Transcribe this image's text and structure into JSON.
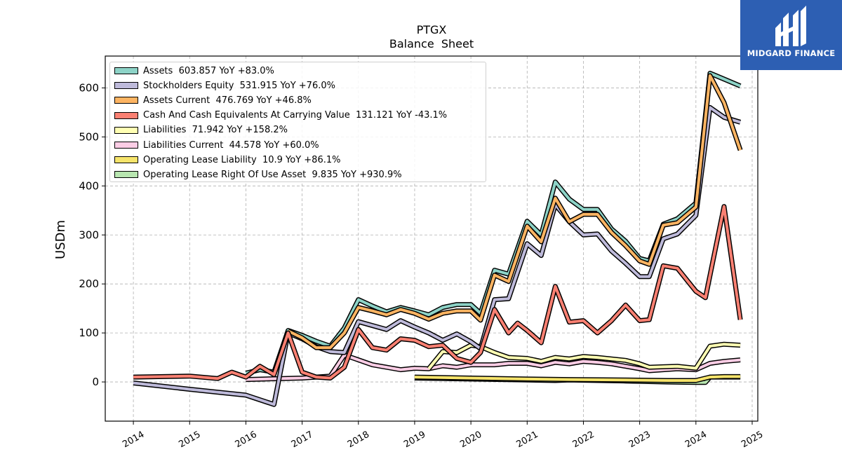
{
  "chart_data": {
    "type": "line",
    "title": "PTGX",
    "subtitle": "Balance  Sheet",
    "ylabel": "USDm",
    "xlabel": "",
    "xlim": [
      2013.5,
      2025.1
    ],
    "ylim": [
      -80,
      665
    ],
    "x_ticks": [
      2014,
      2015,
      2016,
      2017,
      2018,
      2019,
      2020,
      2021,
      2022,
      2023,
      2024,
      2025
    ],
    "y_ticks": [
      0,
      100,
      200,
      300,
      400,
      500,
      600
    ],
    "grid": true,
    "legend_position": "top-left",
    "series": [
      {
        "name": "Assets  603.857 YoY +83.0%",
        "color": "#8dd3c7",
        "points": [
          [
            2016.0,
            18
          ],
          [
            2016.25,
            25
          ],
          [
            2016.5,
            20
          ],
          [
            2016.75,
            105
          ],
          [
            2017.0,
            95
          ],
          [
            2017.25,
            83
          ],
          [
            2017.5,
            73
          ],
          [
            2017.75,
            110
          ],
          [
            2018.0,
            168
          ],
          [
            2018.25,
            155
          ],
          [
            2018.5,
            143
          ],
          [
            2018.75,
            152
          ],
          [
            2019.0,
            145
          ],
          [
            2019.25,
            137
          ],
          [
            2019.5,
            152
          ],
          [
            2019.75,
            158
          ],
          [
            2020.0,
            158
          ],
          [
            2020.17,
            140
          ],
          [
            2020.42,
            228
          ],
          [
            2020.67,
            220
          ],
          [
            2021.0,
            328
          ],
          [
            2021.25,
            300
          ],
          [
            2021.5,
            408
          ],
          [
            2021.75,
            373
          ],
          [
            2022.0,
            352
          ],
          [
            2022.25,
            352
          ],
          [
            2022.5,
            312
          ],
          [
            2022.75,
            287
          ],
          [
            2023.0,
            252
          ],
          [
            2023.17,
            247
          ],
          [
            2023.42,
            322
          ],
          [
            2023.67,
            333
          ],
          [
            2024.0,
            365
          ],
          [
            2024.25,
            630
          ],
          [
            2024.5,
            618
          ],
          [
            2024.79,
            604
          ]
        ]
      },
      {
        "name": "Stockholders Equity  531.915 YoY +76.0%",
        "color": "#bebada",
        "points": [
          [
            2014.0,
            -2
          ],
          [
            2015.0,
            -15
          ],
          [
            2016.0,
            -27
          ],
          [
            2016.5,
            -46
          ],
          [
            2016.75,
            100
          ],
          [
            2017.0,
            88
          ],
          [
            2017.25,
            72
          ],
          [
            2017.5,
            62
          ],
          [
            2017.75,
            60
          ],
          [
            2018.0,
            123
          ],
          [
            2018.25,
            115
          ],
          [
            2018.5,
            107
          ],
          [
            2018.75,
            125
          ],
          [
            2019.0,
            112
          ],
          [
            2019.25,
            100
          ],
          [
            2019.5,
            85
          ],
          [
            2019.75,
            98
          ],
          [
            2020.0,
            82
          ],
          [
            2020.17,
            68
          ],
          [
            2020.42,
            168
          ],
          [
            2020.67,
            170
          ],
          [
            2021.0,
            282
          ],
          [
            2021.25,
            258
          ],
          [
            2021.5,
            362
          ],
          [
            2021.75,
            327
          ],
          [
            2022.0,
            300
          ],
          [
            2022.25,
            302
          ],
          [
            2022.5,
            267
          ],
          [
            2022.75,
            242
          ],
          [
            2023.0,
            215
          ],
          [
            2023.17,
            215
          ],
          [
            2023.42,
            292
          ],
          [
            2023.67,
            302
          ],
          [
            2024.0,
            340
          ],
          [
            2024.25,
            560
          ],
          [
            2024.5,
            540
          ],
          [
            2024.79,
            530
          ]
        ]
      },
      {
        "name": "Assets Current  476.769 YoY +46.8%",
        "color": "#fdb462",
        "points": [
          [
            2016.75,
            104
          ],
          [
            2017.0,
            90
          ],
          [
            2017.25,
            70
          ],
          [
            2017.5,
            70
          ],
          [
            2017.75,
            100
          ],
          [
            2018.0,
            152
          ],
          [
            2018.25,
            145
          ],
          [
            2018.5,
            137
          ],
          [
            2018.75,
            148
          ],
          [
            2019.0,
            140
          ],
          [
            2019.25,
            128
          ],
          [
            2019.5,
            140
          ],
          [
            2019.75,
            145
          ],
          [
            2020.0,
            145
          ],
          [
            2020.17,
            126
          ],
          [
            2020.42,
            218
          ],
          [
            2020.67,
            205
          ],
          [
            2021.0,
            318
          ],
          [
            2021.25,
            286
          ],
          [
            2021.5,
            375
          ],
          [
            2021.75,
            327
          ],
          [
            2022.0,
            342
          ],
          [
            2022.25,
            342
          ],
          [
            2022.5,
            305
          ],
          [
            2022.75,
            278
          ],
          [
            2023.0,
            247
          ],
          [
            2023.17,
            240
          ],
          [
            2023.42,
            320
          ],
          [
            2023.67,
            325
          ],
          [
            2024.0,
            357
          ],
          [
            2024.25,
            625
          ],
          [
            2024.5,
            570
          ],
          [
            2024.79,
            473
          ]
        ]
      },
      {
        "name": "Cash And Cash Equivalents At Carrying Value  131.121 YoY -43.1%",
        "color": "#fb8072",
        "points": [
          [
            2014.0,
            10
          ],
          [
            2015.0,
            12
          ],
          [
            2015.5,
            7
          ],
          [
            2015.75,
            20
          ],
          [
            2016.0,
            10
          ],
          [
            2016.25,
            32
          ],
          [
            2016.5,
            15
          ],
          [
            2016.75,
            100
          ],
          [
            2017.0,
            20
          ],
          [
            2017.25,
            10
          ],
          [
            2017.5,
            8
          ],
          [
            2017.75,
            30
          ],
          [
            2018.0,
            107
          ],
          [
            2018.25,
            70
          ],
          [
            2018.5,
            65
          ],
          [
            2018.75,
            88
          ],
          [
            2019.0,
            85
          ],
          [
            2019.25,
            72
          ],
          [
            2019.5,
            75
          ],
          [
            2019.75,
            48
          ],
          [
            2020.0,
            40
          ],
          [
            2020.17,
            60
          ],
          [
            2020.42,
            148
          ],
          [
            2020.67,
            100
          ],
          [
            2020.83,
            120
          ],
          [
            2021.0,
            105
          ],
          [
            2021.25,
            80
          ],
          [
            2021.5,
            195
          ],
          [
            2021.75,
            122
          ],
          [
            2022.0,
            125
          ],
          [
            2022.25,
            100
          ],
          [
            2022.5,
            125
          ],
          [
            2022.75,
            157
          ],
          [
            2023.0,
            125
          ],
          [
            2023.17,
            127
          ],
          [
            2023.42,
            237
          ],
          [
            2023.67,
            232
          ],
          [
            2024.0,
            185
          ],
          [
            2024.17,
            172
          ],
          [
            2024.5,
            358
          ],
          [
            2024.79,
            127
          ]
        ]
      },
      {
        "name": "Liabilities  71.942 YoY +158.2%",
        "color": "#ffffb3",
        "points": [
          [
            2019.25,
            27
          ],
          [
            2019.5,
            62
          ],
          [
            2019.75,
            60
          ],
          [
            2020.0,
            75
          ],
          [
            2020.17,
            72
          ],
          [
            2020.42,
            60
          ],
          [
            2020.67,
            50
          ],
          [
            2021.0,
            48
          ],
          [
            2021.25,
            42
          ],
          [
            2021.5,
            50
          ],
          [
            2021.75,
            47
          ],
          [
            2022.0,
            52
          ],
          [
            2022.25,
            50
          ],
          [
            2022.5,
            47
          ],
          [
            2022.75,
            44
          ],
          [
            2023.0,
            37
          ],
          [
            2023.17,
            30
          ],
          [
            2023.42,
            31
          ],
          [
            2023.67,
            32
          ],
          [
            2024.0,
            28
          ],
          [
            2024.25,
            73
          ],
          [
            2024.5,
            77
          ],
          [
            2024.79,
            75
          ]
        ]
      },
      {
        "name": "Liabilities Current  44.578 YoY +60.0%",
        "color": "#fccde5",
        "points": [
          [
            2016.0,
            5
          ],
          [
            2017.0,
            8
          ],
          [
            2017.5,
            12
          ],
          [
            2017.75,
            55
          ],
          [
            2018.0,
            45
          ],
          [
            2018.25,
            35
          ],
          [
            2018.5,
            30
          ],
          [
            2018.75,
            25
          ],
          [
            2019.0,
            28
          ],
          [
            2019.25,
            27
          ],
          [
            2019.5,
            33
          ],
          [
            2019.75,
            30
          ],
          [
            2020.0,
            35
          ],
          [
            2020.17,
            35
          ],
          [
            2020.42,
            35
          ],
          [
            2020.67,
            38
          ],
          [
            2021.0,
            38
          ],
          [
            2021.25,
            33
          ],
          [
            2021.5,
            40
          ],
          [
            2021.75,
            37
          ],
          [
            2022.0,
            42
          ],
          [
            2022.25,
            40
          ],
          [
            2022.5,
            37
          ],
          [
            2022.75,
            32
          ],
          [
            2023.0,
            27
          ],
          [
            2023.17,
            23
          ],
          [
            2023.42,
            25
          ],
          [
            2023.67,
            27
          ],
          [
            2024.0,
            25
          ],
          [
            2024.25,
            38
          ],
          [
            2024.5,
            42
          ],
          [
            2024.79,
            45
          ]
        ]
      },
      {
        "name": "Operating Lease Liability  10.9 YoY +86.1%",
        "color": "#f6e46b",
        "points": [
          [
            2019.0,
            10
          ],
          [
            2020.0,
            8
          ],
          [
            2021.0,
            6
          ],
          [
            2021.75,
            5
          ],
          [
            2022.75,
            4
          ],
          [
            2023.5,
            3
          ],
          [
            2024.0,
            3
          ],
          [
            2024.25,
            10
          ],
          [
            2024.5,
            11
          ],
          [
            2024.79,
            11
          ]
        ]
      },
      {
        "name": "Operating Lease Right Of Use Asset  9.835 YoY +930.9%",
        "color": "#b8e6b0",
        "points": [
          [
            2019.0,
            8
          ],
          [
            2020.0,
            6
          ],
          [
            2021.0,
            4
          ],
          [
            2021.5,
            3
          ],
          [
            2021.75,
            4
          ],
          [
            2022.75,
            2
          ],
          [
            2023.5,
            0
          ],
          [
            2024.0,
            -1
          ],
          [
            2024.17,
            -1
          ],
          [
            2024.25,
            10
          ],
          [
            2024.5,
            10
          ],
          [
            2024.79,
            10
          ]
        ]
      }
    ]
  },
  "logo": {
    "text": "MIDGARD FINANCE",
    "color": "#2d5fb3"
  }
}
